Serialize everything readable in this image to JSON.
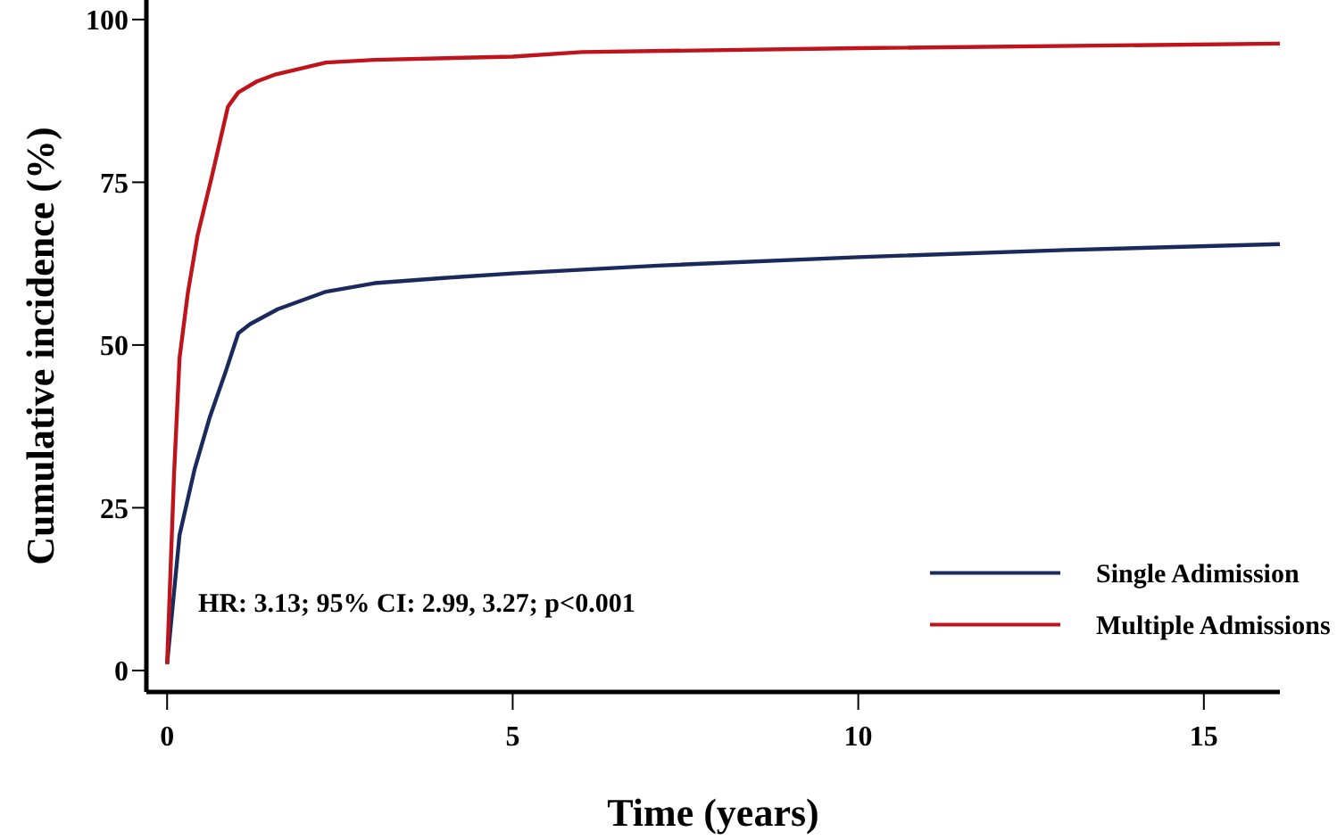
{
  "chart_data": {
    "type": "line",
    "xlabel": "Time (years)",
    "ylabel": "Cumulative incidence (%)",
    "xlim": [
      -0.3,
      16.1
    ],
    "ylim": [
      -3.3,
      103
    ],
    "xticks": [
      0,
      5,
      10,
      15
    ],
    "yticks": [
      0,
      25,
      50,
      75,
      100
    ],
    "grid": false,
    "legend": "bottom right",
    "line_style": "solid",
    "marker": "none",
    "annotations": [
      "HR: 3.13; 95% CI: 2.99, 3.27; p<0.001"
    ],
    "series": [
      {
        "name": "Single Adimission",
        "color": "#1b2a5c",
        "x": [
          0,
          0.18,
          0.4,
          0.62,
          0.85,
          1.03,
          1.2,
          1.6,
          2.3,
          3,
          4,
          5,
          7.1,
          10,
          13,
          16.1
        ],
        "values": [
          1,
          20.8,
          31,
          39,
          46,
          51.8,
          53.2,
          55.5,
          58.2,
          59.5,
          60.3,
          61,
          62.2,
          63.5,
          64.6,
          65.5
        ]
      },
      {
        "name": "Multiple Admissions",
        "color": "#c0141c",
        "x": [
          0,
          0.1,
          0.18,
          0.3,
          0.44,
          0.65,
          0.88,
          1.03,
          1.3,
          1.55,
          2.3,
          3,
          5,
          6,
          10,
          16.1
        ],
        "values": [
          1,
          30,
          48,
          58,
          66.8,
          76,
          86.6,
          88.8,
          90.5,
          91.5,
          93.4,
          93.8,
          94.3,
          95,
          95.6,
          96.3
        ]
      }
    ]
  }
}
